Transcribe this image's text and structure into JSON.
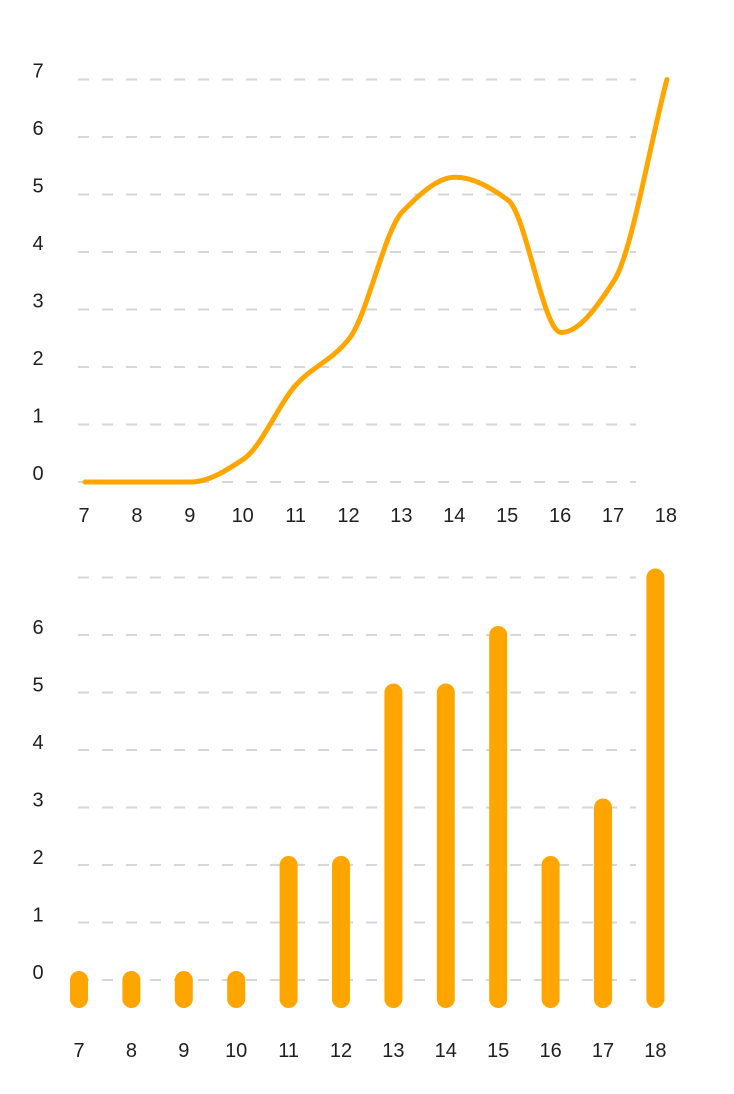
{
  "accent_color": "#FFA500",
  "chart_data": [
    {
      "type": "line",
      "x": [
        7,
        8,
        9,
        10,
        11,
        12,
        13,
        14,
        15,
        16,
        17,
        18
      ],
      "series": [
        {
          "values": [
            0,
            0,
            0,
            0.4,
            1.7,
            2.5,
            4.7,
            5.3,
            4.9,
            2.6,
            3.5,
            7.0
          ]
        }
      ],
      "x_ticks": [
        "7",
        "8",
        "9",
        "10",
        "11",
        "12",
        "13",
        "14",
        "15",
        "16",
        "17",
        "18"
      ],
      "y_ticks": [
        "0",
        "1",
        "2",
        "3",
        "4",
        "5",
        "6",
        "7"
      ],
      "ylim": [
        0,
        7
      ],
      "grid": true,
      "line_style": "smooth"
    },
    {
      "type": "bar",
      "categories": [
        "7",
        "8",
        "9",
        "10",
        "11",
        "12",
        "13",
        "14",
        "15",
        "16",
        "17",
        "18"
      ],
      "values": [
        0,
        0,
        0,
        0,
        2,
        2,
        5,
        5,
        6,
        2,
        3,
        7
      ],
      "y_ticks": [
        "0",
        "1",
        "2",
        "3",
        "4",
        "5",
        "6"
      ],
      "ylim": [
        0,
        7
      ],
      "grid": true,
      "bar_style": "rounded"
    }
  ]
}
